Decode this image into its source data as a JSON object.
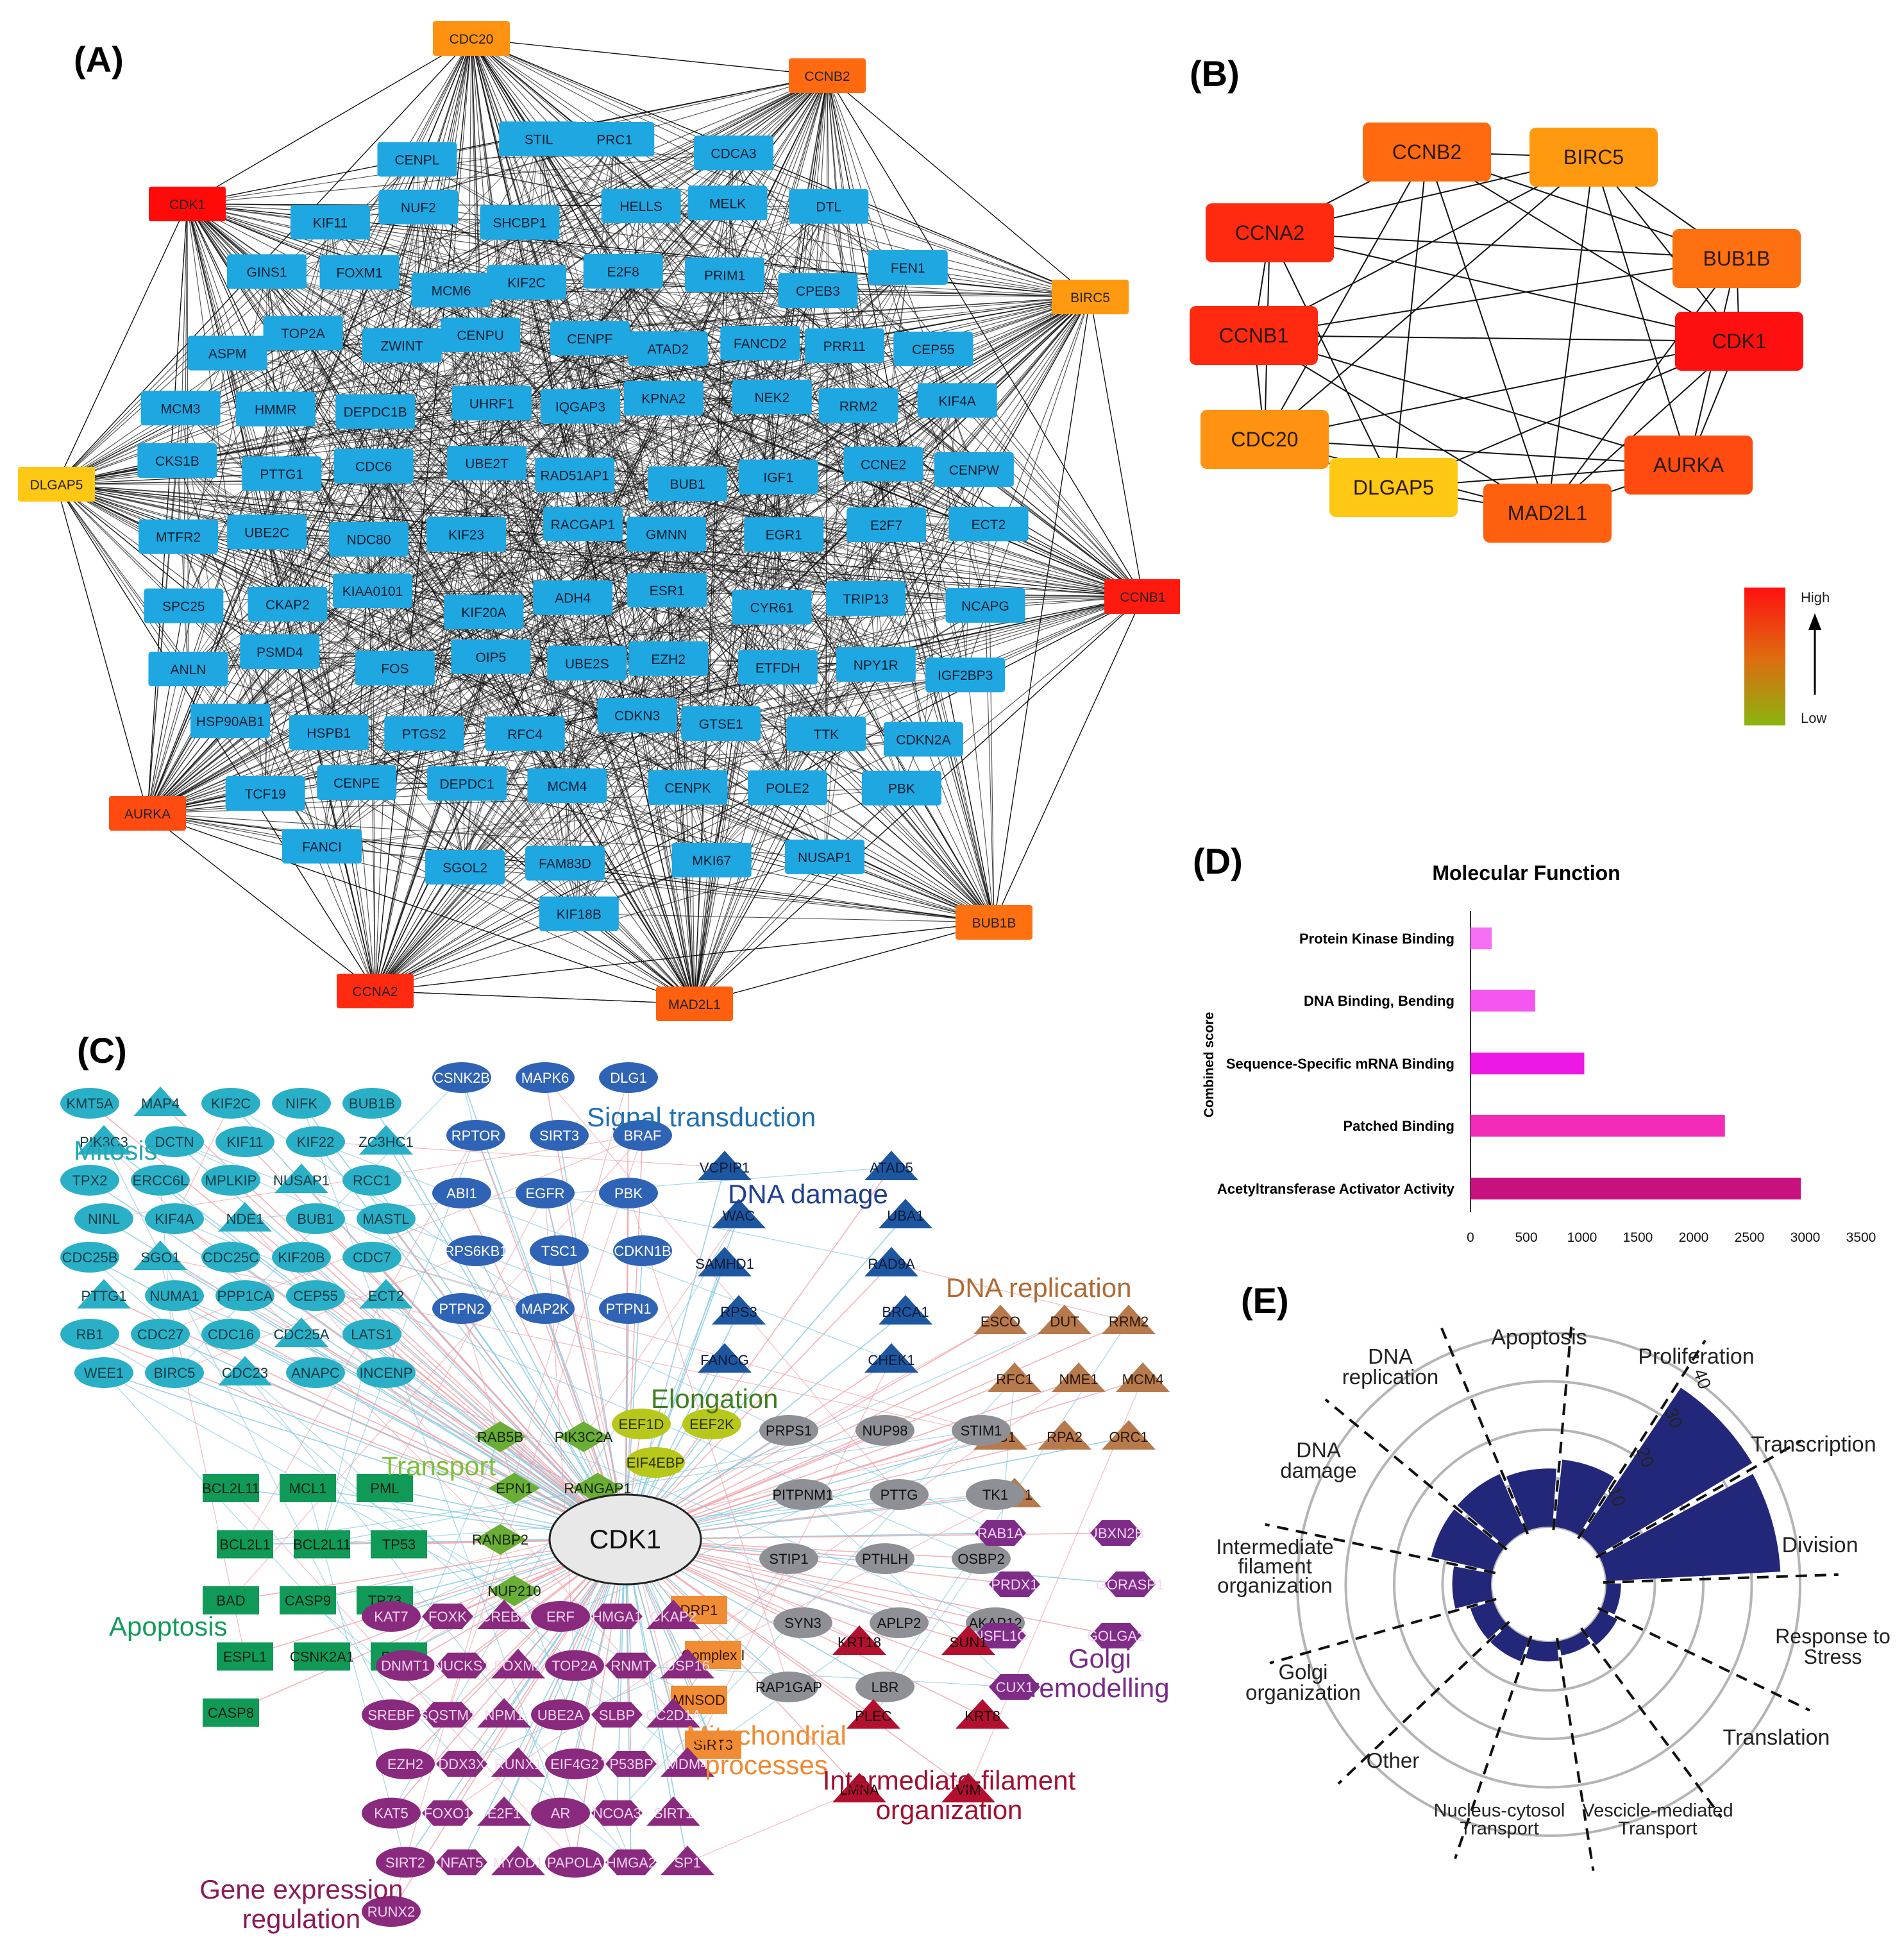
{
  "panel_labels": {
    "a": "(A)",
    "b": "(B)",
    "c": "(C)",
    "d": "(D)",
    "e": "(E)"
  },
  "colors": {
    "node_blue": "#1ea7e1",
    "hub_red": "#ff1a10",
    "hub_redorange": "#ff4a10",
    "hub_orange": "#ff7a10",
    "hub_lightorange": "#ff9a10",
    "hub_yellow": "#ffc814",
    "bar_1": "#f76ff5",
    "bar_2": "#f655f0",
    "bar_3": "#ee18e6",
    "bar_4": "#f22bb8",
    "bar_5": "#c8107f",
    "radial_bar": "#23277a"
  },
  "panel_a": {
    "hubs": [
      {
        "label": "CDC20",
        "color": "#ff9210"
      },
      {
        "label": "CCNB2",
        "color": "#ff6a10"
      },
      {
        "label": "BIRC5",
        "color": "#ff9a10"
      },
      {
        "label": "CCNB1",
        "color": "#ff1a10"
      },
      {
        "label": "BUB1B",
        "color": "#ff7010"
      },
      {
        "label": "MAD2L1",
        "color": "#ff6010"
      },
      {
        "label": "CCNA2",
        "color": "#ff2a10"
      },
      {
        "label": "AURKA",
        "color": "#ff4a10"
      },
      {
        "label": "DLGAP5",
        "color": "#ffc814"
      },
      {
        "label": "CDK1",
        "color": "#ff0a08"
      }
    ],
    "nodes": [
      "CENPL",
      "STIL",
      "PRC1",
      "CDCA3",
      "KIF11",
      "NUF2",
      "SHCBP1",
      "HELLS",
      "MELK",
      "DTL",
      "GINS1",
      "FOXM1",
      "MCM6",
      "KIF2C",
      "E2F8",
      "PRIM1",
      "CPEB3",
      "FEN1",
      "ASPM",
      "TOP2A",
      "ZWINT",
      "CENPU",
      "CENPF",
      "ATAD2",
      "FANCD2",
      "PRR11",
      "CEP55",
      "MCM3",
      "HMMR",
      "DEPDC1B",
      "UHRF1",
      "IQGAP3",
      "KPNA2",
      "NEK2",
      "RRM2",
      "KIF4A",
      "CKS1B",
      "PTTG1",
      "CDC6",
      "UBE2T",
      "RAD51AP1",
      "BUB1",
      "IGF1",
      "CCNE2",
      "CENPW",
      "MTFR2",
      "UBE2C",
      "NDC80",
      "KIF23",
      "RACGAP1",
      "GMNN",
      "EGR1",
      "E2F7",
      "ECT2",
      "SPC25",
      "CKAP2",
      "KIAA0101",
      "KIF20A",
      "ADH4",
      "ESR1",
      "CYR61",
      "TRIP13",
      "NCAPG",
      "ANLN",
      "PSMD4",
      "FOS",
      "OIP5",
      "UBE2S",
      "EZH2",
      "ETFDH",
      "NPY1R",
      "IGF2BP3",
      "HSP90AB1",
      "HSPB1",
      "PTGS2",
      "RFC4",
      "CDKN3",
      "GTSE1",
      "TTK",
      "CDKN2A",
      "TCF19",
      "CENPE",
      "DEPDC1",
      "MCM4",
      "CENPK",
      "POLE2",
      "PBK",
      "FANCI",
      "SGOL2",
      "FAM83D",
      "MKI67",
      "NUSAP1",
      "KIF18B"
    ]
  },
  "panel_b": {
    "nodes": [
      {
        "label": "CCNB2",
        "color": "#ff6a10"
      },
      {
        "label": "BIRC5",
        "color": "#ff9a10"
      },
      {
        "label": "BUB1B",
        "color": "#ff7010"
      },
      {
        "label": "CDK1",
        "color": "#ff1010"
      },
      {
        "label": "AURKA",
        "color": "#ff4a10"
      },
      {
        "label": "MAD2L1",
        "color": "#ff6010"
      },
      {
        "label": "DLGAP5",
        "color": "#ffc814"
      },
      {
        "label": "CDC20",
        "color": "#ff9210"
      },
      {
        "label": "CCNB1",
        "color": "#ff2a10"
      },
      {
        "label": "CCNA2",
        "color": "#ff2a10"
      }
    ],
    "legend_high": "High",
    "legend_low": "Low"
  },
  "panel_c": {
    "center": "CDK1",
    "groups": [
      {
        "title": "Mitosis",
        "color": "#23a7b5"
      },
      {
        "title": "Signal transduction",
        "color": "#1f6fb0"
      },
      {
        "title": "DNA damage",
        "color": "#1f3f8f"
      },
      {
        "title": "DNA replication",
        "color": "#b06a35"
      },
      {
        "title": "Elongation",
        "color": "#3f7f20"
      },
      {
        "title": "Transport",
        "color": "#7fbf3a"
      },
      {
        "title": "Apoptosis",
        "color": "#149a5a"
      },
      {
        "title": "Golgi remodelling",
        "color": "#7a2a8a"
      },
      {
        "title": "Mitochondrial processes",
        "color": "#f08a30"
      },
      {
        "title": "Intermediate-filament organization",
        "color": "#a01030"
      },
      {
        "title": "Gene expression regulation",
        "color": "#8a1a5a"
      }
    ],
    "mitosis": [
      "KMT5A",
      "MAP4",
      "KIF2C",
      "NIFK",
      "BUB1B",
      "PIK3C3",
      "DCTN",
      "KIF11",
      "KIF22",
      "ZC3HC1",
      "TPX2",
      "ERCC6L",
      "MPLKIP",
      "NUSAP1",
      "RCC1",
      "NINL",
      "KIF4A",
      "NDE1",
      "BUB1",
      "MASTL",
      "CDC25B",
      "SGO1",
      "CDC25C",
      "KIF20B",
      "CDC7",
      "PTTG1",
      "NUMA1",
      "PPP1CA",
      "CEP55",
      "ECT2",
      "RB1",
      "CDC27",
      "CDC16",
      "CDC25A",
      "LATS1",
      "WEE1",
      "BIRC5",
      "CDC23",
      "ANAPC",
      "INCENP"
    ],
    "signal": [
      "CSNK2B",
      "MAPK6",
      "DLG1",
      "RPTOR",
      "SIRT3",
      "BRAF",
      "ABI1",
      "EGFR",
      "PBK",
      "RPS6KB1",
      "TSC1",
      "CDKN1B",
      "PTPN2",
      "MAP2K",
      "PTPN1"
    ],
    "dna_damage": [
      "VCPIP1",
      "ATAD5",
      "WAC",
      "UBA1",
      "SAMHD1",
      "RAD9A",
      "RPS3",
      "BRCA1",
      "FANCG",
      "CHEK1"
    ],
    "dna_replication": [
      "ESCO",
      "DUT",
      "RRM2",
      "RFC1",
      "NME1",
      "MCM4",
      "LIG1",
      "RPA2",
      "ORC1",
      "FEN1"
    ],
    "elongation": [
      "EEF1D",
      "EEF2K",
      "EIF4EBP"
    ],
    "transport": [
      "RAB5B",
      "PIK3C2A",
      "EPN1",
      "RANGAP1",
      "RANBP2",
      "NUP50",
      "NUP210"
    ],
    "apoptosis": [
      "BCL2L11",
      "MCL1",
      "PML",
      "BCL2L1",
      "BCL2L11",
      "TP53",
      "BAD",
      "CASP9",
      "TP73",
      "ESPL1",
      "CSNK2A1",
      "BCL2",
      "CASP8"
    ],
    "gray": [
      "PRPS1",
      "NUP98",
      "STIM1",
      "PITPNM1",
      "PTTG",
      "TK1",
      "STIP1",
      "PTHLH",
      "OSBP2",
      "SYN3",
      "APLP2",
      "AKAP12",
      "RAP1GAP",
      "LBR"
    ],
    "golgi": [
      "RAB1A",
      "UBXN2B",
      "PRDX1",
      "GORASP1",
      "NSFL1C",
      "GOLGA2",
      "CUX1"
    ],
    "mito": [
      "DRP1",
      "Complex I",
      "MNSOD",
      "SIRT3"
    ],
    "filament": [
      "KRT18",
      "SUN1",
      "PLEC",
      "KRT8",
      "LMNA",
      "VIM"
    ],
    "gene": [
      "KAT7",
      "FOXK",
      "CREB2",
      "ERF",
      "HMGA1",
      "CKAP2",
      "DNMT1",
      "NUCKS1",
      "FOXM1",
      "TOP2A",
      "RNMT",
      "USP16",
      "SREBF",
      "SQSTM1",
      "NPM1",
      "UBE2A",
      "SLBP",
      "CC2D1A",
      "EZH2",
      "DDX3X",
      "RUNX1",
      "EIF4G2",
      "TP53BP1",
      "MDM4",
      "KAT5",
      "FOXO1",
      "E2F1",
      "AR",
      "NCOA3",
      "SIRT1",
      "SIRT2",
      "NFAT5",
      "MYOD1",
      "PAPOLA",
      "HMGA2",
      "SP1",
      "RUNX2"
    ]
  },
  "panel_d": {
    "chart_data": {
      "type": "bar",
      "orientation": "horizontal",
      "title": "Molecular Function",
      "ylabel": "Combined score",
      "categories": [
        "Protein Kinase Binding",
        "DNA Binding, Bending",
        "Sequence-Specific mRNA Binding",
        "Patched Binding",
        "Acetyltransferase Activator Activity"
      ],
      "values": [
        190,
        580,
        1020,
        2280,
        2960
      ],
      "xlim": [
        0,
        3500
      ],
      "xticks": [
        "0",
        "500",
        "1000",
        "1500",
        "2000",
        "2500",
        "3000",
        "3500"
      ],
      "bar_colors": [
        "#f76ff5",
        "#f655f0",
        "#ee18e6",
        "#f22bb8",
        "#c8107f"
      ],
      "grid": false
    }
  },
  "panel_e": {
    "chart_data": {
      "type": "bar",
      "projection": "polar",
      "categories": [
        "Proliferation",
        "Transcription",
        "Division",
        "Response to Stress",
        "Translation",
        "Vescicle-mediated Transport",
        "Nucleus-cytosol Transport",
        "Other",
        "Golgi organization",
        "Intermediate filament organization",
        "DNA damage",
        "DNA replication",
        "Apoptosis"
      ],
      "values": [
        14,
        37,
        36,
        3,
        4,
        3,
        4,
        5,
        5,
        8,
        13,
        13,
        12
      ],
      "rlim": [
        0,
        40
      ],
      "rticks": [
        "10",
        "20",
        "30",
        "40"
      ],
      "bar_color": "#23277a"
    },
    "labels": {
      "proliferation": "Proliferation",
      "transcription": "Transcription",
      "division": "Division",
      "response_1": "Response to",
      "response_2": "Stress",
      "translation": "Translation",
      "vesicle_1": "Vescicle-mediated",
      "vesicle_2": "Transport",
      "nucleus_1": "Nucleus-cytosol",
      "nucleus_2": "Transport",
      "other": "Other",
      "golgi_1": "Golgi",
      "golgi_2": "organization",
      "filament_1": "Intermediate",
      "filament_2": "filament",
      "filament_3": "organization",
      "dnadamage_1": "DNA",
      "dnadamage_2": "damage",
      "dnarep_1": "DNA",
      "dnarep_2": "replication",
      "apoptosis": "Apoptosis"
    }
  }
}
